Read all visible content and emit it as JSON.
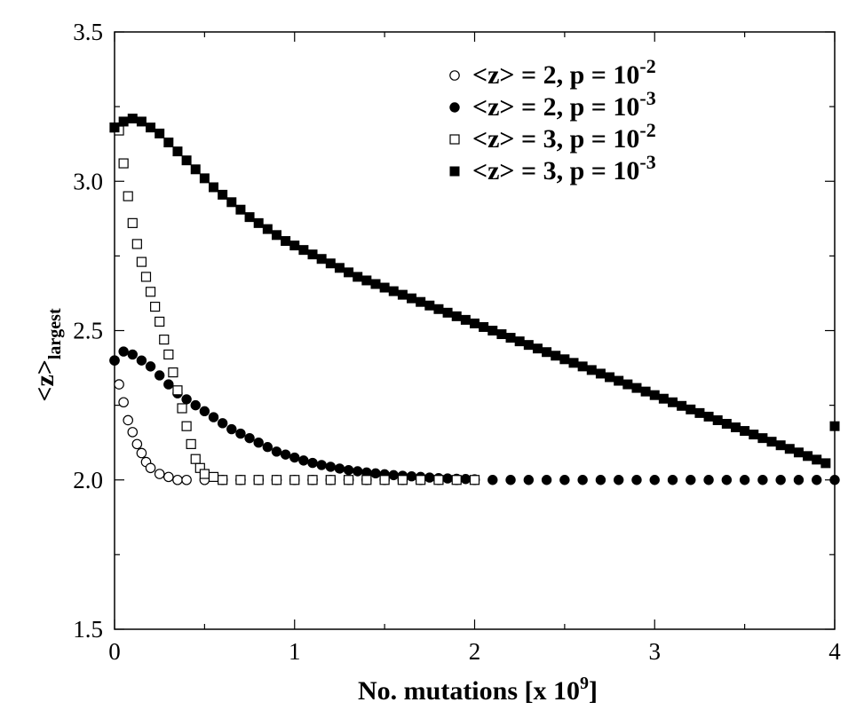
{
  "chart_data": {
    "type": "scatter",
    "xlabel": "No. mutations  [x 10",
    "xlabel_sup": "9",
    "xlabel_end": "]",
    "ylabel_main": "<z>",
    "ylabel_sub": "largest",
    "xlim": [
      0,
      4
    ],
    "ylim": [
      1.5,
      3.5
    ],
    "x_ticks": [
      0,
      1,
      2,
      3,
      4
    ],
    "x_tick_labels": [
      "0",
      "1",
      "2",
      "3",
      "4"
    ],
    "y_ticks": [
      1.5,
      2.0,
      2.5,
      3.0,
      3.5
    ],
    "y_tick_labels": [
      "1.5",
      "2.0",
      "2.5",
      "3.0",
      "3.5"
    ],
    "grid": false,
    "legend_position": "top-right",
    "series": [
      {
        "name": "<z> = 2, p = 10",
        "name_sup": "-2",
        "marker": "circle-open",
        "x": [
          0.0,
          0.025,
          0.05,
          0.075,
          0.1,
          0.125,
          0.15,
          0.175,
          0.2,
          0.25,
          0.3,
          0.35,
          0.4,
          0.5,
          0.6,
          0.7,
          0.8,
          0.9,
          1.0,
          1.1,
          1.2,
          1.3,
          1.4,
          1.5,
          1.6,
          1.7,
          1.8,
          1.9,
          2.0
        ],
        "y": [
          2.4,
          2.32,
          2.26,
          2.2,
          2.16,
          2.12,
          2.09,
          2.06,
          2.04,
          2.02,
          2.01,
          2.0,
          2.0,
          2.0,
          2.0,
          2.0,
          2.0,
          2.0,
          2.0,
          2.0,
          2.0,
          2.0,
          2.0,
          2.0,
          2.0,
          2.0,
          2.0,
          2.0,
          2.0
        ]
      },
      {
        "name": "<z> = 2, p = 10",
        "name_sup": "-3",
        "marker": "circle-filled",
        "x": [
          0.0,
          0.05,
          0.1,
          0.15,
          0.2,
          0.25,
          0.3,
          0.35,
          0.4,
          0.45,
          0.5,
          0.55,
          0.6,
          0.65,
          0.7,
          0.75,
          0.8,
          0.85,
          0.9,
          0.95,
          1.0,
          1.05,
          1.1,
          1.15,
          1.2,
          1.25,
          1.3,
          1.35,
          1.4,
          1.45,
          1.5,
          1.55,
          1.6,
          1.65,
          1.7,
          1.75,
          1.8,
          1.85,
          1.9,
          1.95,
          2.0,
          2.1,
          2.2,
          2.3,
          2.4,
          2.5,
          2.6,
          2.7,
          2.8,
          2.9,
          3.0,
          3.1,
          3.2,
          3.3,
          3.4,
          3.5,
          3.6,
          3.7,
          3.8,
          3.9,
          4.0
        ],
        "y": [
          2.4,
          2.43,
          2.42,
          2.4,
          2.38,
          2.35,
          2.32,
          2.29,
          2.27,
          2.25,
          2.23,
          2.21,
          2.19,
          2.17,
          2.155,
          2.14,
          2.125,
          2.11,
          2.095,
          2.085,
          2.075,
          2.065,
          2.057,
          2.05,
          2.044,
          2.038,
          2.033,
          2.029,
          2.025,
          2.022,
          2.019,
          2.016,
          2.014,
          2.012,
          2.01,
          2.008,
          2.006,
          2.005,
          2.004,
          2.003,
          2.002,
          2.0,
          2.0,
          2.0,
          2.0,
          2.0,
          2.0,
          2.0,
          2.0,
          2.0,
          2.0,
          2.0,
          2.0,
          2.0,
          2.0,
          2.0,
          2.0,
          2.0,
          2.0,
          2.0,
          2.0
        ]
      },
      {
        "name": "<z> = 3, p = 10",
        "name_sup": "-2",
        "marker": "square-open",
        "x": [
          0.0,
          0.025,
          0.05,
          0.075,
          0.1,
          0.125,
          0.15,
          0.175,
          0.2,
          0.225,
          0.25,
          0.275,
          0.3,
          0.325,
          0.35,
          0.375,
          0.4,
          0.425,
          0.45,
          0.475,
          0.5,
          0.55,
          0.6,
          0.7,
          0.8,
          0.9,
          1.0,
          1.1,
          1.2,
          1.3,
          1.4,
          1.5,
          1.6,
          1.7,
          1.8,
          1.9,
          2.0
        ],
        "y": [
          3.18,
          3.17,
          3.06,
          2.95,
          2.86,
          2.79,
          2.73,
          2.68,
          2.63,
          2.58,
          2.53,
          2.47,
          2.42,
          2.36,
          2.3,
          2.24,
          2.18,
          2.12,
          2.07,
          2.04,
          2.02,
          2.01,
          2.0,
          2.0,
          2.0,
          2.0,
          2.0,
          2.0,
          2.0,
          2.0,
          2.0,
          2.0,
          2.0,
          2.0,
          2.0,
          2.0,
          2.0
        ]
      },
      {
        "name": "<z> = 3, p = 10",
        "name_sup": "-3",
        "marker": "square-filled",
        "x": [
          0.0,
          0.05,
          0.1,
          0.15,
          0.2,
          0.25,
          0.3,
          0.35,
          0.4,
          0.45,
          0.5,
          0.55,
          0.6,
          0.65,
          0.7,
          0.75,
          0.8,
          0.85,
          0.9,
          0.95,
          1.0,
          1.05,
          1.1,
          1.15,
          1.2,
          1.25,
          1.3,
          1.35,
          1.4,
          1.45,
          1.5,
          1.55,
          1.6,
          1.65,
          1.7,
          1.75,
          1.8,
          1.85,
          1.9,
          1.95,
          2.0,
          2.05,
          2.1,
          2.15,
          2.2,
          2.25,
          2.3,
          2.35,
          2.4,
          2.45,
          2.5,
          2.55,
          2.6,
          2.65,
          2.7,
          2.75,
          2.8,
          2.85,
          2.9,
          2.95,
          3.0,
          3.05,
          3.1,
          3.15,
          3.2,
          3.25,
          3.3,
          3.35,
          3.4,
          3.45,
          3.5,
          3.55,
          3.6,
          3.65,
          3.7,
          3.75,
          3.8,
          3.85,
          3.9,
          3.95,
          4.0
        ],
        "y": [
          3.18,
          3.2,
          3.21,
          3.2,
          3.18,
          3.16,
          3.13,
          3.1,
          3.07,
          3.04,
          3.01,
          2.98,
          2.955,
          2.93,
          2.905,
          2.88,
          2.86,
          2.84,
          2.82,
          2.8,
          2.785,
          2.77,
          2.755,
          2.74,
          2.725,
          2.71,
          2.695,
          2.68,
          2.668,
          2.656,
          2.644,
          2.632,
          2.62,
          2.608,
          2.596,
          2.584,
          2.572,
          2.56,
          2.548,
          2.536,
          2.524,
          2.512,
          2.5,
          2.488,
          2.476,
          2.464,
          2.452,
          2.44,
          2.428,
          2.416,
          2.404,
          2.392,
          2.38,
          2.368,
          2.356,
          2.344,
          2.332,
          2.32,
          2.308,
          2.296,
          2.284,
          2.272,
          2.26,
          2.248,
          2.236,
          2.224,
          2.212,
          2.2,
          2.188,
          2.176,
          2.164,
          2.152,
          2.14,
          2.128,
          2.116,
          2.104,
          2.092,
          2.08,
          2.068,
          2.056,
          2.18
        ]
      }
    ]
  }
}
